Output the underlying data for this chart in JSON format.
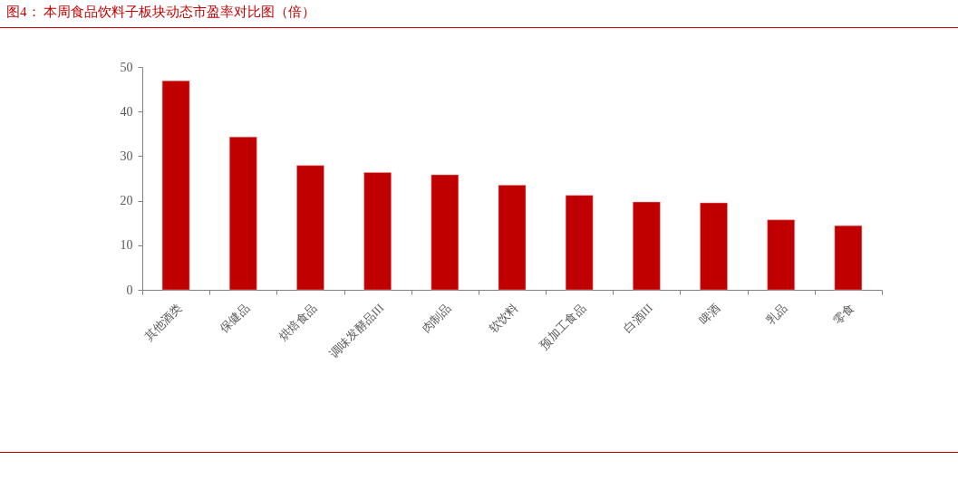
{
  "chart_data": {
    "type": "bar",
    "title": "图4： 本周食品饮料子板块动态市盈率对比图（倍）",
    "categories": [
      "其他酒类",
      "保健品",
      "烘焙食品",
      "调味发酵品III",
      "肉制品",
      "软饮料",
      "预加工食品",
      "白酒III",
      "啤酒",
      "乳品",
      "零食"
    ],
    "values": [
      46.9,
      34.3,
      27.9,
      26.3,
      25.8,
      23.5,
      21.2,
      19.7,
      19.5,
      15.7,
      14.4
    ],
    "color": "#c00000",
    "ylim": [
      0,
      50
    ],
    "yticks": [
      0,
      10,
      20,
      30,
      40,
      50
    ],
    "grid": false
  }
}
